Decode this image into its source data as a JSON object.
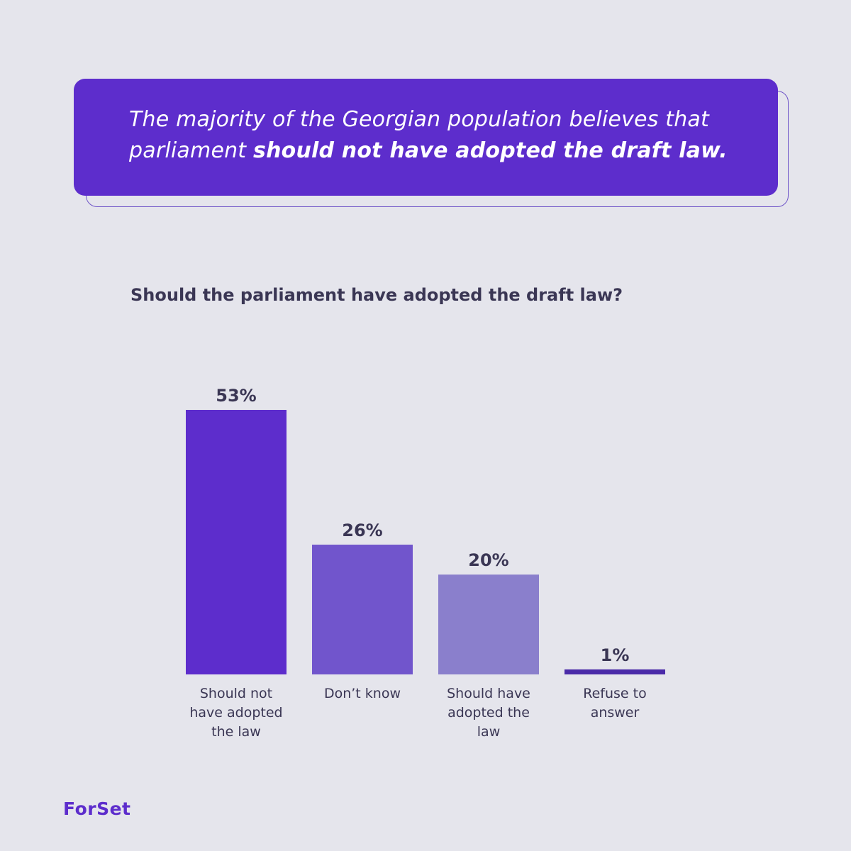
{
  "banner": {
    "text_regular": "The majority of the Georgian population believes that parliament ",
    "text_bold": "should not have adopted the draft law."
  },
  "chart_data": {
    "type": "bar",
    "title": "Should the parliament have adopted the draft law?",
    "categories": [
      [
        "Should not",
        "have adopted",
        "the law"
      ],
      [
        "Don’t know"
      ],
      [
        "Should have",
        "adopted the",
        "law"
      ],
      [
        "Refuse to",
        "answer"
      ]
    ],
    "values": [
      53,
      26,
      20,
      1
    ],
    "value_labels": [
      "53%",
      "26%",
      "20%",
      "1%"
    ],
    "colors": [
      "#5d2dcc",
      "#7155cc",
      "#8a7fcc",
      "#4a2aa8"
    ],
    "ylim": [
      0,
      53
    ],
    "grid": false
  },
  "footer": {
    "logo": "ForSet"
  }
}
